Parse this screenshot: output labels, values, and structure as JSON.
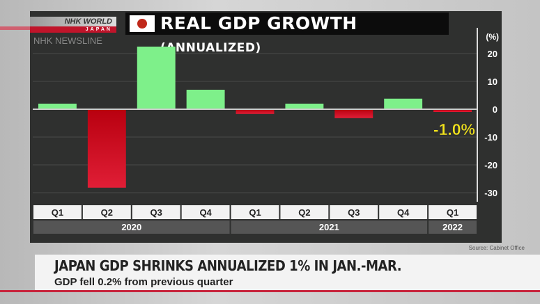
{
  "branding": {
    "logo_text": "NHK WORLD",
    "logo_sub": "JAPAN",
    "program": "NHK NEWSLINE"
  },
  "title": {
    "main": "REAL GDP GROWTH",
    "paren": "(ANNUALIZED)",
    "flag_icon": "japan-flag-icon"
  },
  "chart_data": {
    "type": "bar",
    "title": "REAL GDP GROWTH (ANNUALIZED)",
    "ylabel": "(%)",
    "ylim": [
      -30,
      25
    ],
    "yticks": [
      20,
      10,
      0,
      -10,
      -20,
      -30
    ],
    "grid": true,
    "categories": [
      "Q1",
      "Q2",
      "Q3",
      "Q4",
      "Q1",
      "Q2",
      "Q3",
      "Q4",
      "Q1"
    ],
    "years": [
      {
        "label": "2020",
        "span": 4
      },
      {
        "label": "2021",
        "span": 4
      },
      {
        "label": "2022",
        "span": 1
      }
    ],
    "values": [
      2.0,
      -28.2,
      22.5,
      7.0,
      -1.7,
      2.0,
      -3.2,
      3.8,
      -1.0
    ],
    "annotation": "-1.0%",
    "colors": {
      "positive": "#7ef08a",
      "negative": "#c8102a",
      "annotation": "#f5e61a"
    }
  },
  "source": "Source: Cabinet Office",
  "ticker": {
    "headline": "JAPAN GDP SHRINKS ANNUALIZED 1% IN JAN.-MAR.",
    "subline": "GDP fell 0.2% from previous quarter"
  }
}
